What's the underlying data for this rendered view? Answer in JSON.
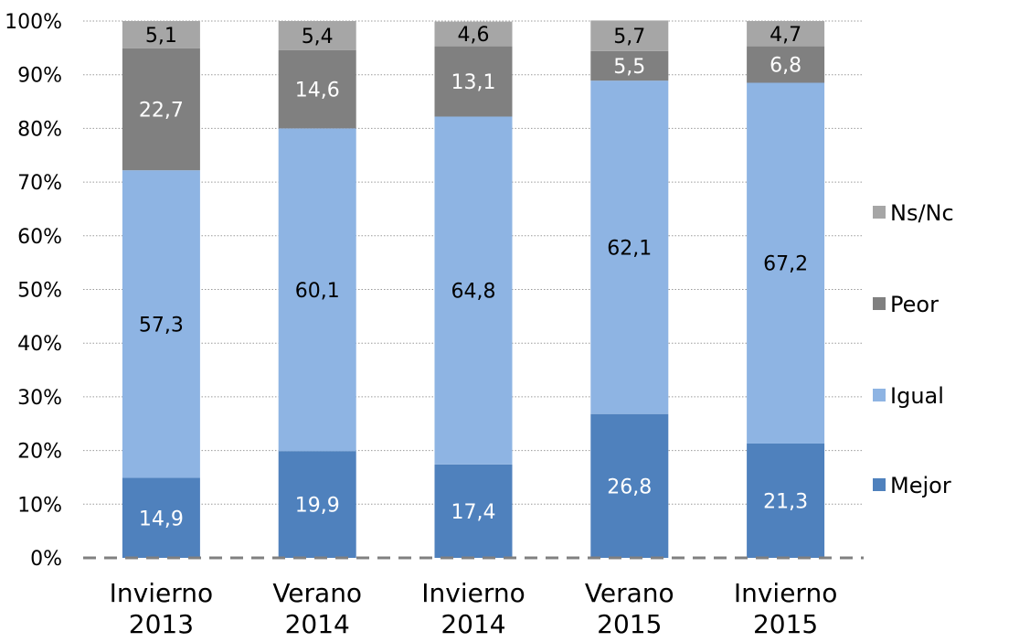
{
  "chart_data": {
    "type": "bar",
    "stacked": true,
    "percent_stacked": true,
    "categories": [
      [
        "Invierno",
        "2013"
      ],
      [
        "Verano",
        "2014"
      ],
      [
        "Invierno",
        "2014"
      ],
      [
        "Verano",
        "2015"
      ],
      [
        "Invierno",
        "2015"
      ]
    ],
    "series": [
      {
        "name": "Mejor",
        "color": "#4F81BD",
        "label_color": "#FFFFFF",
        "values": [
          14.9,
          19.9,
          17.4,
          26.8,
          21.3
        ],
        "labels": [
          "14,9",
          "19,9",
          "17,4",
          "26,8",
          "21,3"
        ]
      },
      {
        "name": "Igual",
        "color": "#8EB4E3",
        "label_color": "#000000",
        "values": [
          57.3,
          60.1,
          64.8,
          62.1,
          67.2
        ],
        "labels": [
          "57,3",
          "60,1",
          "64,8",
          "62,1",
          "67,2"
        ]
      },
      {
        "name": "Peor",
        "color": "#808080",
        "label_color": "#FFFFFF",
        "values": [
          22.7,
          14.6,
          13.1,
          5.5,
          6.8
        ],
        "labels": [
          "22,7",
          "14,6",
          "13,1",
          "5,5",
          "6,8"
        ]
      },
      {
        "name": "Ns/Nc",
        "color": "#A6A6A6",
        "label_color": "#000000",
        "values": [
          5.1,
          5.4,
          4.6,
          5.7,
          4.7
        ],
        "labels": [
          "5,1",
          "5,4",
          "4,6",
          "5,7",
          "4,7"
        ]
      }
    ],
    "yticks": [
      "0%",
      "10%",
      "20%",
      "30%",
      "40%",
      "50%",
      "60%",
      "70%",
      "80%",
      "90%",
      "100%"
    ],
    "ylim": [
      0,
      100
    ],
    "grid": true,
    "legend_position": "right",
    "title": "",
    "xlabel": "",
    "ylabel": ""
  }
}
